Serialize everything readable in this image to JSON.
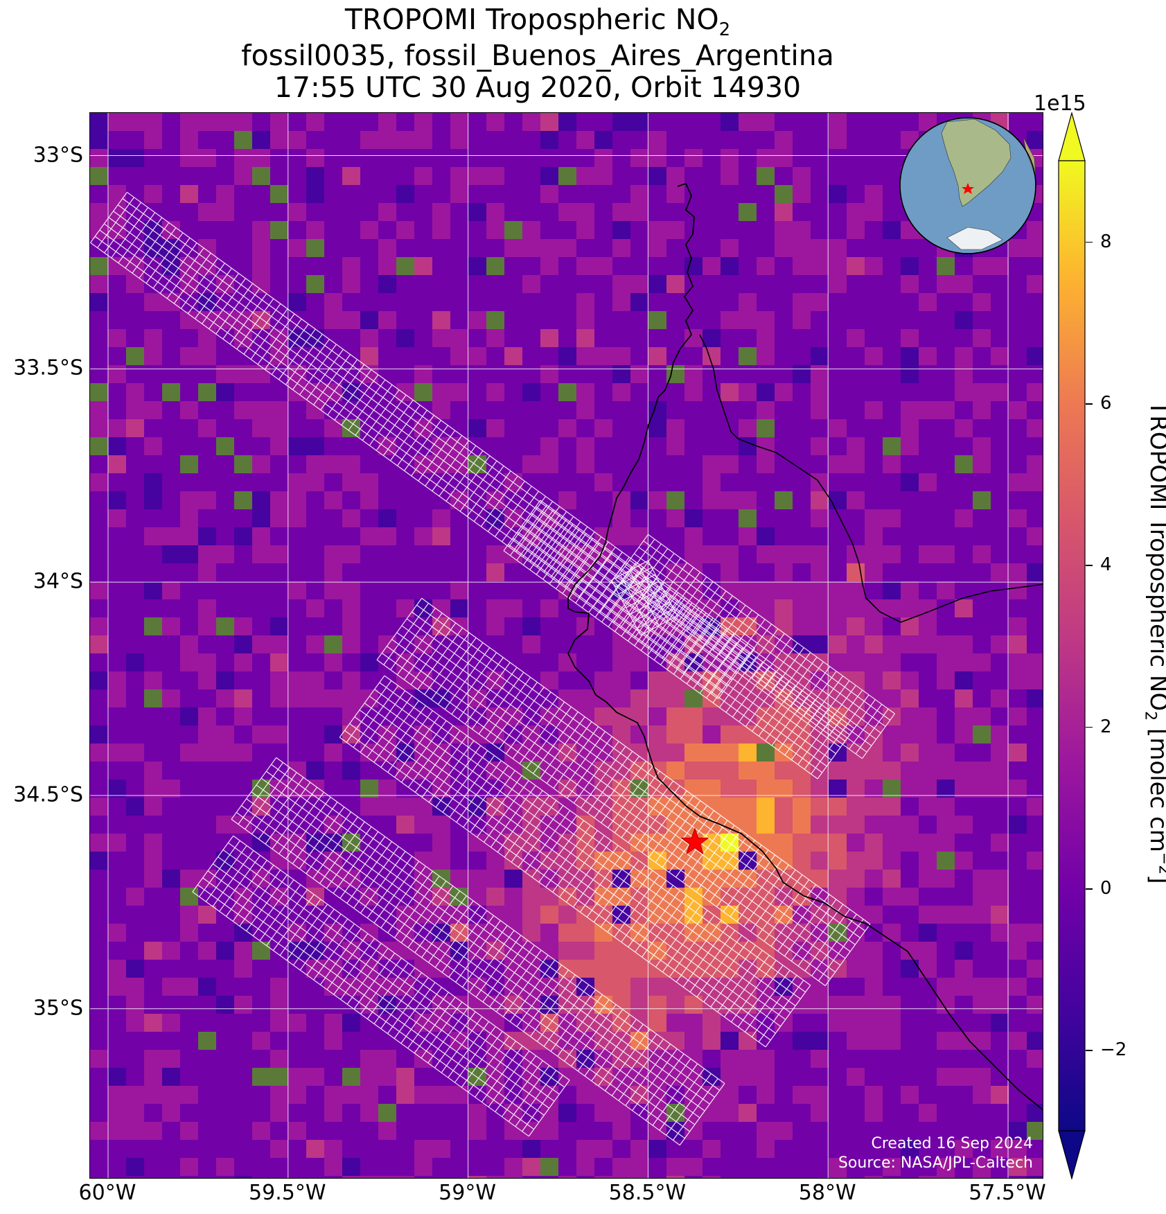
{
  "title": {
    "line1_prefix": "TROPOMI Tropospheric NO",
    "line1_sub": "2",
    "line2": "fossil0035, fossil_Buenos_Aires_Argentina",
    "line3": "17:55 UTC 30 Aug 2020, Orbit 14930"
  },
  "axes": {
    "lat_ticks": [
      "33°S",
      "33.5°S",
      "34°S",
      "34.5°S",
      "35°S"
    ],
    "lon_ticks": [
      "60°W",
      "59.5°W",
      "59°W",
      "58.5°W",
      "58°W",
      "57.5°W"
    ],
    "extent": {
      "lon_min": -60.05,
      "lon_max": -57.4,
      "lat_min": -35.4,
      "lat_max": -32.9
    },
    "grid": true
  },
  "colorbar": {
    "exponent": "1e15",
    "ticks": [
      "8",
      "6",
      "4",
      "2",
      "0",
      "−2"
    ],
    "tick_values": [
      8,
      6,
      4,
      2,
      0,
      -2
    ],
    "range": [
      -3,
      9
    ],
    "colormap": "plasma",
    "label_prefix": "TROPOMI Tropospheric NO",
    "label_sub": "2",
    "label_mid": " [molec cm",
    "label_sup": "−2",
    "label_suffix": "]",
    "extend": "both"
  },
  "marker": {
    "name": "Buenos Aires",
    "lon": -58.37,
    "lat": -34.61,
    "color": "#ff0000",
    "shape": "star"
  },
  "inset": {
    "description": "globe-inset",
    "marker_color": "#ff0000"
  },
  "credits": {
    "created": "Created 16 Sep 2024",
    "source": "Source: NASA/JPL-Caltech"
  },
  "colors": {
    "background_field": "#9b1fa0",
    "hotspot": "#f5b82e",
    "grid_lines": "#ffffff",
    "coastline": "#000000",
    "target_footprints": "#ffffff"
  }
}
